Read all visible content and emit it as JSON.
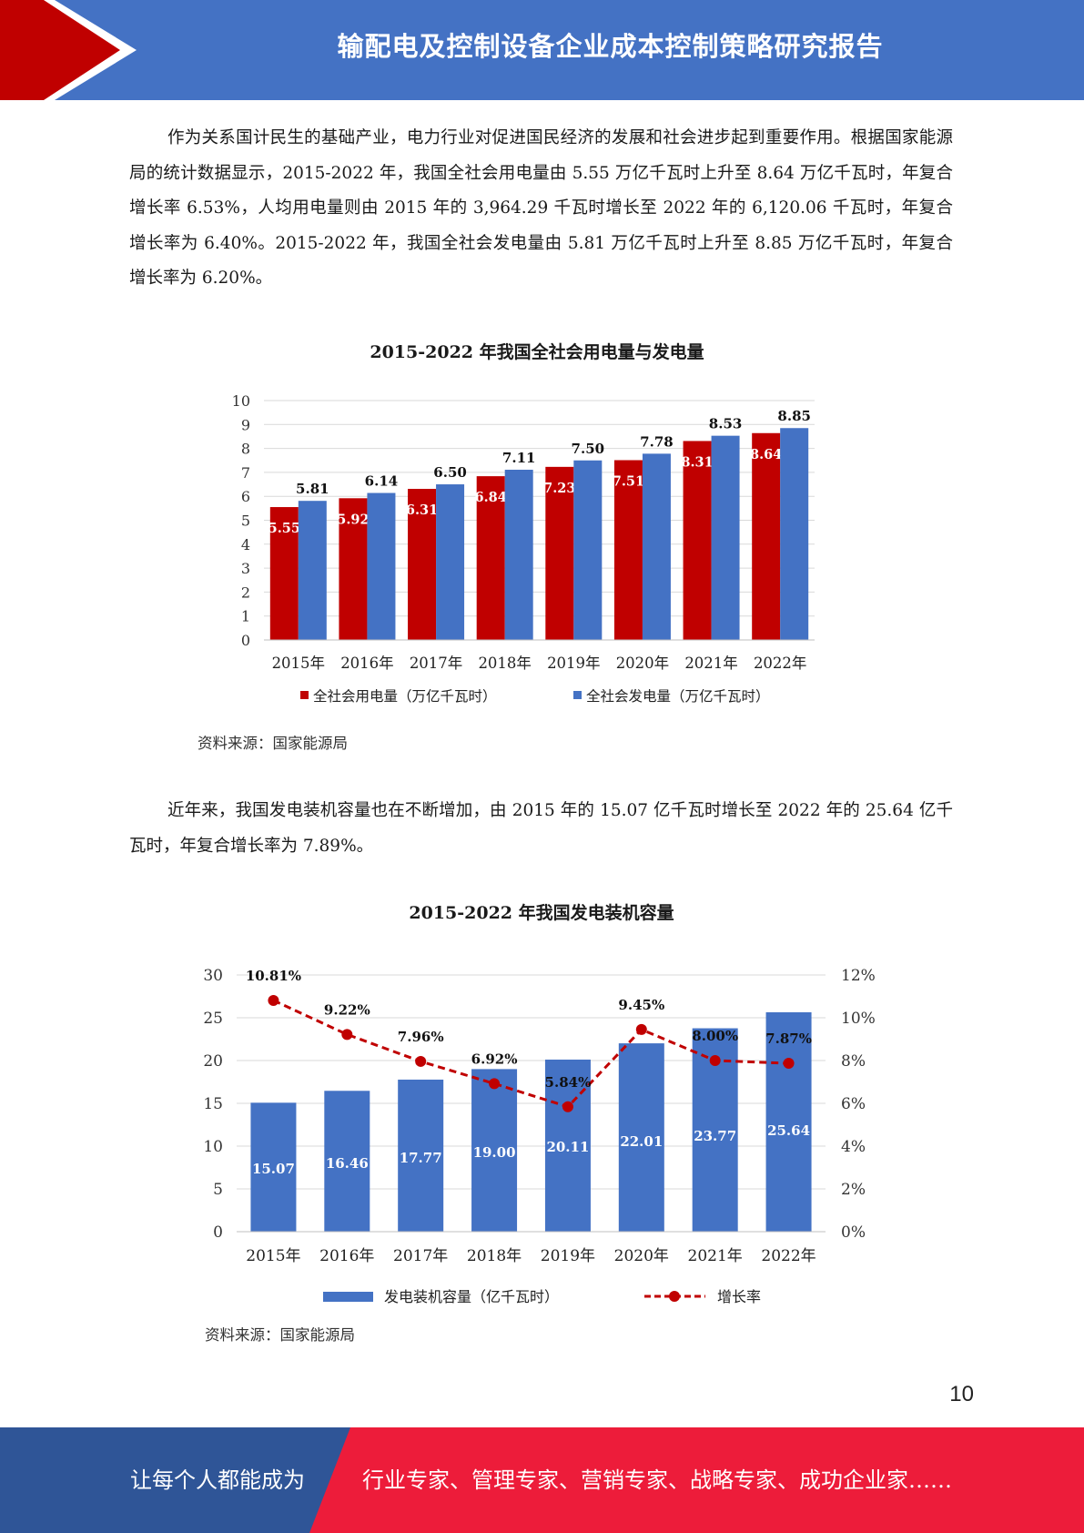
{
  "header": {
    "title": "输配电及控制设备企业成本控制策略研究报告"
  },
  "paragraphs": {
    "p1": "作为关系国计民生的基础产业，电力行业对促进国民经济的发展和社会进步起到重要作用。根据国家能源局的统计数据显示，2015-2022 年，我国全社会用电量由 5.55 万亿千瓦时上升至 8.64 万亿千瓦时，年复合增长率 6.53%，人均用电量则由 2015 年的 3,964.29 千瓦时增长至 2022 年的 6,120.06 千瓦时，年复合增长率为 6.40%。2015-2022 年，我国全社会发电量由 5.81 万亿千瓦时上升至 8.85 万亿千瓦时，年复合增长率为 6.20%。",
    "p2": "近年来，我国发电装机容量也在不断增加，由 2015 年的 15.07 亿千瓦时增长至 2022 年的 25.64 亿千瓦时，年复合增长率为 7.89%。"
  },
  "sources": {
    "s1": "资料来源：国家能源局",
    "s2": "资料来源：国家能源局"
  },
  "chart_data": [
    {
      "type": "bar",
      "title": "2015-2022 年我国全社会用电量与发电量",
      "categories": [
        "2015年",
        "2016年",
        "2017年",
        "2018年",
        "2019年",
        "2020年",
        "2021年",
        "2022年"
      ],
      "series": [
        {
          "name": "全社会用电量（万亿千瓦时）",
          "values": [
            5.55,
            5.92,
            6.31,
            6.84,
            7.23,
            7.51,
            8.31,
            8.64
          ],
          "color": "#C00000"
        },
        {
          "name": "全社会发电量（万亿千瓦时）",
          "values": [
            5.81,
            6.14,
            6.5,
            7.11,
            7.5,
            7.78,
            8.53,
            8.85
          ],
          "color": "#4472C4"
        }
      ],
      "ylim": [
        0,
        10
      ],
      "yticks": [
        0,
        1,
        2,
        3,
        4,
        5,
        6,
        7,
        8,
        9,
        10
      ],
      "grid": true,
      "legend": "bottom"
    },
    {
      "type": "bar",
      "title": "2015-2022 年我国发电装机容量",
      "categories": [
        "2015年",
        "2016年",
        "2017年",
        "2018年",
        "2019年",
        "2020年",
        "2021年",
        "2022年"
      ],
      "series": [
        {
          "name": "发电装机容量（亿千瓦时）",
          "type": "bar",
          "values": [
            15.07,
            16.46,
            17.77,
            19.0,
            20.11,
            22.01,
            23.77,
            25.64
          ],
          "labels": [
            "15.07",
            "16.46",
            "17.77",
            "19.00",
            "20.11",
            "22.01",
            "23.77",
            "25.64"
          ],
          "color": "#4472C4"
        },
        {
          "name": "增长率",
          "type": "line",
          "values": [
            10.81,
            9.22,
            7.96,
            6.92,
            5.84,
            9.45,
            8.0,
            7.87
          ],
          "labels": [
            "10.81%",
            "9.22%",
            "7.96%",
            "6.92%",
            "5.84%",
            "9.45%",
            "8.00%",
            "7.87%"
          ],
          "color": "#C00000"
        }
      ],
      "ylim": [
        0,
        30
      ],
      "yticks": [
        0,
        5,
        10,
        15,
        20,
        25,
        30
      ],
      "y2lim": [
        0,
        12
      ],
      "y2ticks": [
        "0%",
        "2%",
        "4%",
        "6%",
        "8%",
        "10%",
        "12%"
      ],
      "grid": true,
      "legend": "bottom"
    }
  ],
  "page_number": "10",
  "footer": {
    "left": "让每个人都能成为",
    "right": "行业专家、管理专家、营销专家、战略专家、成功企业家……"
  },
  "colors": {
    "header_blue": "#4472C4",
    "header_red": "#C00000",
    "footer_blue": "#2F5597",
    "footer_red": "#ED1C3A"
  }
}
